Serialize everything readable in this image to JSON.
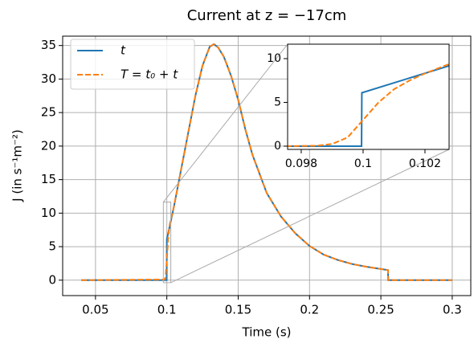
{
  "chart_data": [
    {
      "type": "line",
      "title": "Current at z = −17cm",
      "xlabel": "Time (s)",
      "ylabel": "J (in s⁻¹m⁻²)",
      "xlim": [
        0.027,
        0.313
      ],
      "ylim": [
        -2.3,
        36.4
      ],
      "xticks": [
        0.05,
        0.1,
        0.15,
        0.2,
        0.25,
        0.3
      ],
      "yticks": [
        0,
        5,
        10,
        15,
        20,
        25,
        30,
        35
      ],
      "grid": true,
      "legend": "upper left",
      "series": [
        {
          "name": "t",
          "color": "#1f77b4",
          "style": "solid",
          "x": [
            0.04,
            0.0999,
            0.1,
            0.102,
            0.105,
            0.11,
            0.115,
            0.12,
            0.125,
            0.13,
            0.133,
            0.136,
            0.14,
            0.145,
            0.15,
            0.155,
            0.16,
            0.17,
            0.18,
            0.19,
            0.2,
            0.21,
            0.22,
            0.23,
            0.24,
            0.255,
            0.2551,
            0.3
          ],
          "values": [
            0,
            0,
            6.1,
            8,
            11,
            16.5,
            22,
            27.5,
            32,
            34.8,
            35.2,
            34.7,
            33.3,
            30.5,
            26.9,
            22.5,
            18.7,
            13,
            9.5,
            7,
            5.1,
            3.8,
            3,
            2.4,
            2,
            1.5,
            0,
            0
          ]
        },
        {
          "name": "T = t₀ + t",
          "color": "#ff7f0e",
          "style": "dashed",
          "x": [
            0.04,
            0.098,
            0.099,
            0.1,
            0.101,
            0.102,
            0.105,
            0.11,
            0.115,
            0.12,
            0.125,
            0.13,
            0.133,
            0.136,
            0.14,
            0.145,
            0.15,
            0.155,
            0.16,
            0.17,
            0.18,
            0.19,
            0.2,
            0.21,
            0.22,
            0.23,
            0.24,
            0.255,
            0.2551,
            0.3
          ],
          "values": [
            0,
            0.1,
            0.3,
            3,
            6.5,
            8.3,
            11,
            16.5,
            22,
            27.5,
            32,
            34.8,
            35.2,
            34.7,
            33.3,
            30.5,
            26.9,
            22.5,
            18.7,
            13,
            9.5,
            7,
            5.1,
            3.8,
            3,
            2.4,
            2,
            1.5,
            0,
            0
          ]
        }
      ]
    },
    {
      "type": "line",
      "xlim": [
        0.09756,
        0.10278
      ],
      "ylim": [
        -0.37,
        11.65
      ],
      "xticks": [
        0.098,
        0.1,
        0.102
      ],
      "yticks": [
        0,
        5,
        10
      ],
      "grid": false,
      "series": [
        {
          "color": "#1f77b4",
          "style": "solid",
          "x": [
            0.0975,
            0.09995,
            0.09996,
            0.1028
          ],
          "values": [
            0,
            0,
            6.1,
            9.2
          ]
        },
        {
          "color": "#ff7f0e",
          "style": "dashed",
          "x": [
            0.0975,
            0.0985,
            0.099,
            0.0995,
            0.1,
            0.1005,
            0.101,
            0.1015,
            0.102,
            0.1025,
            0.1028
          ],
          "values": [
            0,
            0.05,
            0.25,
            1,
            3,
            5,
            6.5,
            7.5,
            8.3,
            9,
            9.4
          ]
        }
      ]
    }
  ]
}
